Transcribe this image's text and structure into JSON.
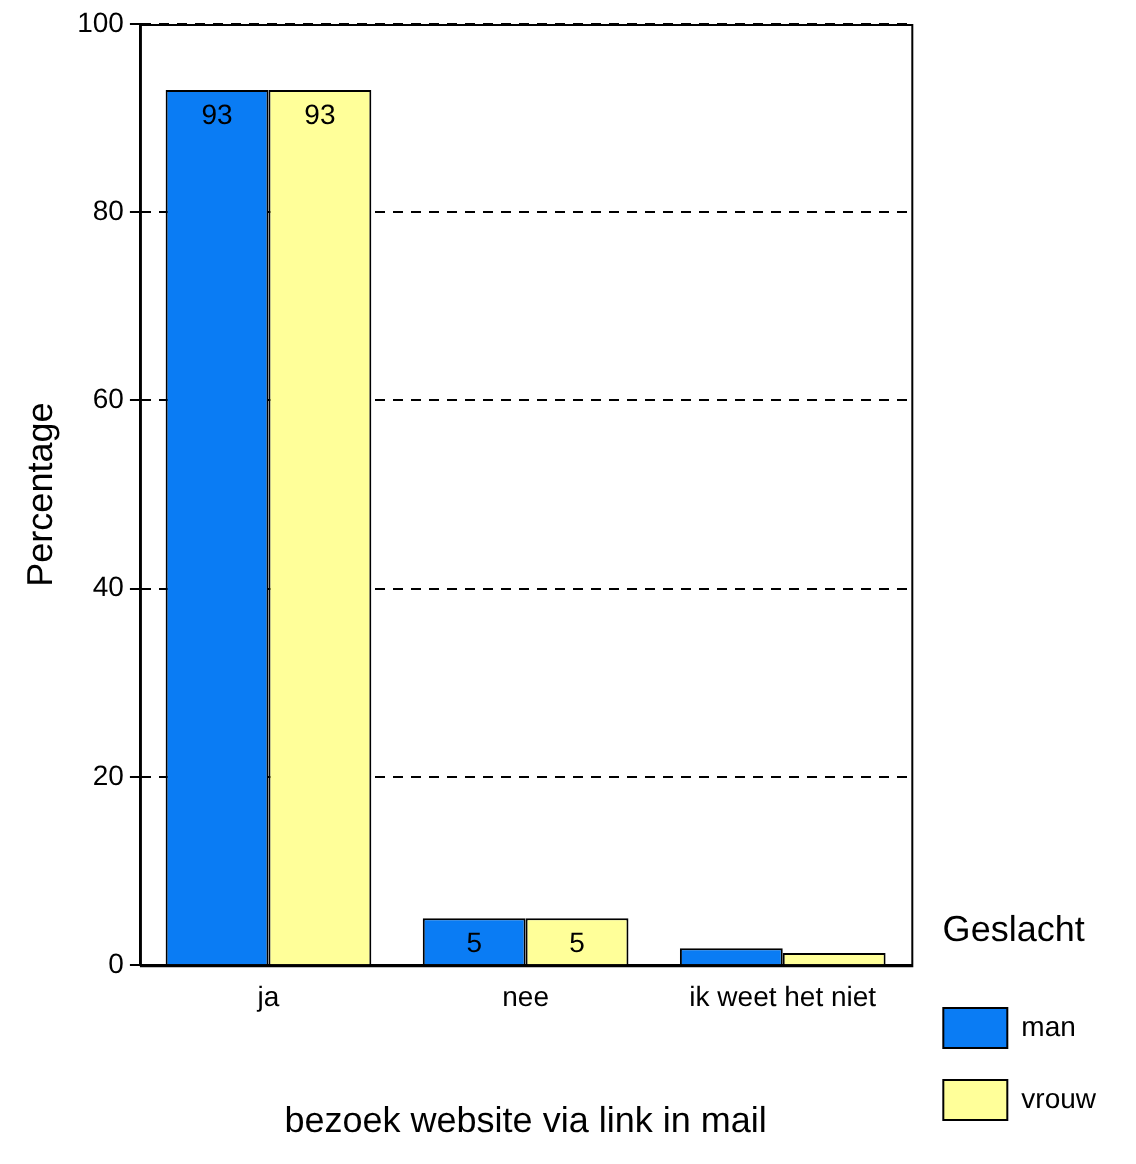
{
  "chart_data": {
    "type": "bar",
    "xlabel": "bezoek website via link in mail",
    "ylabel": "Percentage",
    "legend_title": "Geslacht",
    "categories": [
      "ja",
      "nee",
      "ik weet het niet"
    ],
    "series": [
      {
        "name": "man",
        "color": "#0a7cf4",
        "values": [
          93,
          5,
          1.8
        ],
        "value_labels": [
          "93",
          "5",
          null
        ]
      },
      {
        "name": "vrouw",
        "color": "#ffff99",
        "values": [
          93,
          5,
          1.3
        ],
        "value_labels": [
          "93",
          "5",
          null
        ]
      }
    ],
    "ylim": [
      0,
      100
    ],
    "yticks": [
      0,
      20,
      40,
      60,
      80,
      100
    ],
    "grid": "y",
    "legend": "bottom right"
  }
}
